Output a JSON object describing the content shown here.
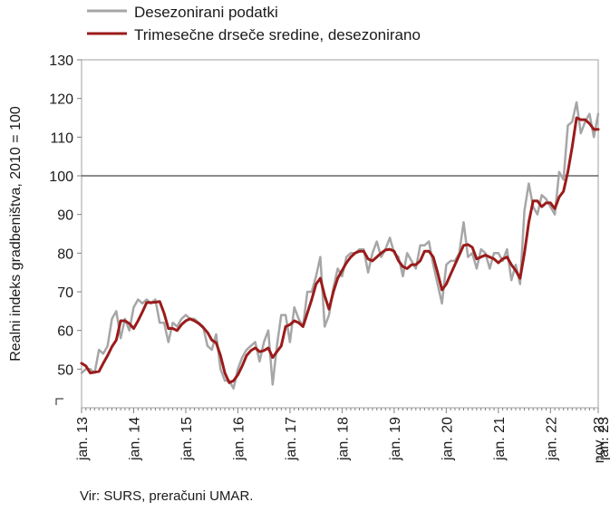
{
  "chart_data": {
    "type": "line",
    "ylabel": "Realni indeks gradbeništva, 2010 = 100",
    "ylim": [
      40,
      130
    ],
    "yticks": [
      50,
      60,
      70,
      80,
      90,
      100,
      110,
      120,
      130
    ],
    "y_axis_break": true,
    "reference_line": 100,
    "grid": false,
    "legend_position": "top-left, above plot",
    "source": "Vir: SURS, preračuni UMAR.",
    "x_start": "jan. 13",
    "x_end": "nov. 23",
    "x_ticks": [
      "jan. 13",
      "jan. 14",
      "jan. 15",
      "jan. 16",
      "jan. 17",
      "jan. 18",
      "jan. 19",
      "jan. 20",
      "jan. 21",
      "jan. 22",
      "jan. 23",
      "nov. 23"
    ],
    "series": [
      {
        "name": "Desezonirani podatki",
        "color": "#a6a6a6",
        "values": [
          49,
          50,
          50,
          49,
          55,
          54,
          56,
          63,
          65,
          58,
          63,
          60,
          66,
          68,
          67,
          68,
          67,
          68,
          62,
          62,
          57,
          62,
          61,
          63,
          64,
          63,
          63,
          62,
          61,
          56,
          55,
          59,
          50,
          47,
          47,
          45,
          50,
          53,
          55,
          56,
          57,
          52,
          57,
          60,
          46,
          56,
          64,
          64,
          57,
          66,
          63,
          61,
          70,
          70,
          74,
          79,
          61,
          64,
          71,
          76,
          74,
          79,
          80,
          80,
          81,
          81,
          75,
          80,
          83,
          79,
          81,
          84,
          80,
          79,
          74,
          80,
          78,
          76,
          82,
          82,
          83,
          77,
          72,
          67,
          77,
          78,
          78,
          80,
          88,
          79,
          80,
          76,
          81,
          80,
          76,
          80,
          80,
          78,
          81,
          73,
          77,
          72,
          91,
          98,
          92,
          90,
          95,
          94,
          92,
          90,
          101,
          99,
          113,
          114,
          119,
          111,
          114,
          116,
          110,
          116
        ]
      },
      {
        "name": "Trimesečne drseče sredine, desezonirano",
        "color": "#9b1b1b",
        "values": [
          51.5,
          50.8,
          49.0,
          49.2,
          49.4,
          51.5,
          53.5,
          55.8,
          57.5,
          62.5,
          62.5,
          61.8,
          60.5,
          62.5,
          64.8,
          67.2,
          67.2,
          67.3,
          67.5,
          64.5,
          60.5,
          60.5,
          60.0,
          61.5,
          62.5,
          63.0,
          62.5,
          61.8,
          60.8,
          59.5,
          57.5,
          56.8,
          53.5,
          49.0,
          46.5,
          47.0,
          48.5,
          50.8,
          53.5,
          54.8,
          55.5,
          54.5,
          54.8,
          55.5,
          53.0,
          54.5,
          56.0,
          61.0,
          61.5,
          62.5,
          62.0,
          61.0,
          64.5,
          68.0,
          72.0,
          73.5,
          69.0,
          65.5,
          70.0,
          73.5,
          75.5,
          77.5,
          79.0,
          80.0,
          80.5,
          80.5,
          78.5,
          78.0,
          79.0,
          80.0,
          80.8,
          81.0,
          80.5,
          78.0,
          76.5,
          76.0,
          77.0,
          77.0,
          78.0,
          80.5,
          80.5,
          79.0,
          75.0,
          70.5,
          72.0,
          74.5,
          77.0,
          79.5,
          82.0,
          82.2,
          81.5,
          78.5,
          79.0,
          79.5,
          79.0,
          78.5,
          77.5,
          78.5,
          79.0,
          77.0,
          75.5,
          73.5,
          80.0,
          88.0,
          93.5,
          93.5,
          92.0,
          93.0,
          93.0,
          91.5,
          94.5,
          96.0,
          101.0,
          107.5,
          115.0,
          114.5,
          114.5,
          113.5,
          112.0,
          112.0
        ]
      }
    ]
  }
}
